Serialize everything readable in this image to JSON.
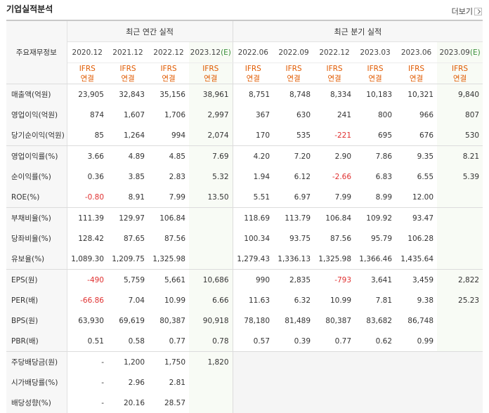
{
  "section_title": "기업실적분석",
  "more_link": "더보기",
  "row_header_label": "주요재무정보",
  "annual_group_label": "최근 연간 실적",
  "quarter_group_label": "최근 분기 실적",
  "periods": [
    {
      "date": "2020.12",
      "estimate": "",
      "ifrs": "IFRS",
      "basis": "연결"
    },
    {
      "date": "2021.12",
      "estimate": "",
      "ifrs": "IFRS",
      "basis": "연결"
    },
    {
      "date": "2022.12",
      "estimate": "",
      "ifrs": "IFRS",
      "basis": "연결"
    },
    {
      "date": "2023.12",
      "estimate": "(E)",
      "ifrs": "IFRS",
      "basis": "연결"
    },
    {
      "date": "2022.06",
      "estimate": "",
      "ifrs": "IFRS",
      "basis": "연결"
    },
    {
      "date": "2022.09",
      "estimate": "",
      "ifrs": "IFRS",
      "basis": "연결"
    },
    {
      "date": "2022.12",
      "estimate": "",
      "ifrs": "IFRS",
      "basis": "연결"
    },
    {
      "date": "2023.03",
      "estimate": "",
      "ifrs": "IFRS",
      "basis": "연결"
    },
    {
      "date": "2023.06",
      "estimate": "",
      "ifrs": "IFRS",
      "basis": "연결"
    },
    {
      "date": "2023.09",
      "estimate": "(E)",
      "ifrs": "IFRS",
      "basis": "연결"
    }
  ],
  "rows": [
    {
      "label": "매출액(억원)",
      "values": [
        "23,905",
        "32,843",
        "35,156",
        "38,961",
        "8,751",
        "8,748",
        "8,334",
        "10,183",
        "10,321",
        "9,840"
      ]
    },
    {
      "label": "영업이익(억원)",
      "values": [
        "874",
        "1,607",
        "1,706",
        "2,997",
        "367",
        "630",
        "241",
        "800",
        "966",
        "807"
      ]
    },
    {
      "label": "당기순이익(억원)",
      "values": [
        "85",
        "1,264",
        "994",
        "2,074",
        "170",
        "535",
        "-221",
        "695",
        "676",
        "530"
      ],
      "group_end": true
    },
    {
      "label": "영업이익률(%)",
      "values": [
        "3.66",
        "4.89",
        "4.85",
        "7.69",
        "4.20",
        "7.20",
        "2.90",
        "7.86",
        "9.35",
        "8.21"
      ]
    },
    {
      "label": "순이익률(%)",
      "values": [
        "0.36",
        "3.85",
        "2.83",
        "5.32",
        "1.94",
        "6.12",
        "-2.66",
        "6.83",
        "6.55",
        "5.39"
      ]
    },
    {
      "label": "ROE(%)",
      "values": [
        "-0.80",
        "8.91",
        "7.99",
        "13.50",
        "5.51",
        "6.97",
        "7.99",
        "8.99",
        "12.00",
        ""
      ],
      "group_end": true
    },
    {
      "label": "부채비율(%)",
      "values": [
        "111.39",
        "129.97",
        "106.84",
        "",
        "118.69",
        "113.79",
        "106.84",
        "109.92",
        "93.47",
        ""
      ]
    },
    {
      "label": "당좌비율(%)",
      "values": [
        "128.42",
        "87.65",
        "87.56",
        "",
        "100.34",
        "93.75",
        "87.56",
        "95.79",
        "106.28",
        ""
      ]
    },
    {
      "label": "유보율(%)",
      "values": [
        "1,089.30",
        "1,209.75",
        "1,325.98",
        "",
        "1,279.43",
        "1,336.13",
        "1,325.98",
        "1,366.46",
        "1,435.64",
        ""
      ],
      "group_end": true
    },
    {
      "label": "EPS(원)",
      "values": [
        "-490",
        "5,759",
        "5,661",
        "10,686",
        "990",
        "2,835",
        "-793",
        "3,641",
        "3,459",
        "2,822"
      ]
    },
    {
      "label": "PER(배)",
      "values": [
        "-66.86",
        "7.04",
        "10.99",
        "6.66",
        "11.63",
        "6.32",
        "10.99",
        "7.81",
        "9.38",
        "25.23"
      ]
    },
    {
      "label": "BPS(원)",
      "values": [
        "63,930",
        "69,619",
        "80,387",
        "90,918",
        "78,180",
        "81,489",
        "80,387",
        "83,682",
        "86,748",
        ""
      ]
    },
    {
      "label": "PBR(배)",
      "values": [
        "0.51",
        "0.58",
        "0.77",
        "0.78",
        "0.57",
        "0.39",
        "0.77",
        "0.62",
        "0.99",
        ""
      ],
      "group_end": true
    },
    {
      "label": "주당배당금(원)",
      "values": [
        "-",
        "1,200",
        "1,750",
        "1,820",
        "",
        "",
        "",
        "",
        "",
        ""
      ],
      "no_quarter": true
    },
    {
      "label": "시가배당률(%)",
      "values": [
        "-",
        "2.96",
        "2.81",
        "",
        "",
        "",
        "",
        "",
        "",
        ""
      ],
      "no_quarter": true
    },
    {
      "label": "배당성향(%)",
      "values": [
        "-",
        "20.16",
        "28.57",
        "",
        "",
        "",
        "",
        "",
        "",
        ""
      ],
      "no_quarter": true
    }
  ],
  "colors": {
    "negative": "#e03030",
    "ifrs": "#e05a00",
    "estimate_mark": "#3a8f3a",
    "header_bg": "#f7f7f7",
    "estimate_bg": "#f8fbf5"
  }
}
